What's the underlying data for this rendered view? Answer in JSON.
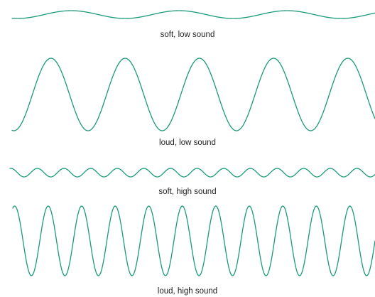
{
  "waves": [
    {
      "caption": "soft, low sound"
    },
    {
      "caption": "loud, low sound"
    },
    {
      "caption": "soft, high sound"
    },
    {
      "caption": "loud, high sound"
    }
  ],
  "colors": {
    "wave": "#1a9a7a",
    "text": "#1f1f1f",
    "background": "#ffffff"
  }
}
